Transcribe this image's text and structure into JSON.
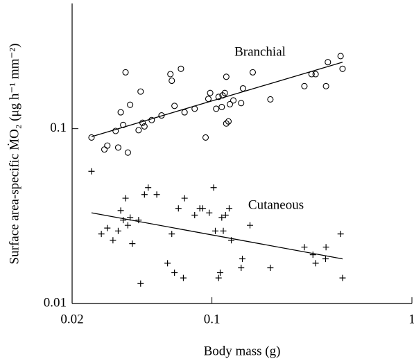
{
  "chart_data": {
    "type": "scatter",
    "xlabel": "Body mass  (g)",
    "ylabel": "Surface area-specific ṀO₂ (μg h⁻¹ mm⁻²)",
    "xscale": "log",
    "yscale": "log",
    "xlim": [
      0.02,
      1
    ],
    "ylim": [
      0.01,
      0.52
    ],
    "xticks": [
      0.02,
      0.1,
      1
    ],
    "yticks": [
      0.01,
      0.1
    ],
    "series": [
      {
        "name": "Branchial",
        "marker": "circle",
        "color": "#000000",
        "x": [
          0.025,
          0.029,
          0.03,
          0.033,
          0.034,
          0.035,
          0.036,
          0.037,
          0.038,
          0.039,
          0.043,
          0.044,
          0.045,
          0.046,
          0.05,
          0.056,
          0.062,
          0.063,
          0.065,
          0.07,
          0.073,
          0.082,
          0.093,
          0.096,
          0.098,
          0.105,
          0.108,
          0.112,
          0.113,
          0.116,
          0.118,
          0.118,
          0.121,
          0.123,
          0.128,
          0.14,
          0.143,
          0.16,
          0.196,
          0.29,
          0.315,
          0.33,
          0.372,
          0.38,
          0.44,
          0.45
        ],
        "values": [
          0.089,
          0.076,
          0.08,
          0.097,
          0.078,
          0.124,
          0.105,
          0.21,
          0.073,
          0.137,
          0.098,
          0.163,
          0.108,
          0.103,
          0.112,
          0.119,
          0.205,
          0.188,
          0.135,
          0.22,
          0.124,
          0.13,
          0.089,
          0.148,
          0.16,
          0.13,
          0.152,
          0.133,
          0.155,
          0.16,
          0.198,
          0.107,
          0.11,
          0.138,
          0.145,
          0.14,
          0.17,
          0.21,
          0.147,
          0.175,
          0.205,
          0.205,
          0.175,
          0.24,
          0.26,
          0.22
        ],
        "fit": {
          "x": [
            0.025,
            0.45
          ],
          "values": [
            0.09,
            0.24
          ]
        }
      },
      {
        "name": "Cutaneous",
        "marker": "plus",
        "color": "#000000",
        "x": [
          0.025,
          0.028,
          0.03,
          0.032,
          0.034,
          0.035,
          0.036,
          0.037,
          0.038,
          0.039,
          0.04,
          0.043,
          0.044,
          0.046,
          0.048,
          0.053,
          0.06,
          0.063,
          0.065,
          0.068,
          0.072,
          0.073,
          0.082,
          0.087,
          0.09,
          0.097,
          0.102,
          0.104,
          0.108,
          0.11,
          0.112,
          0.114,
          0.117,
          0.122,
          0.125,
          0.14,
          0.142,
          0.155,
          0.196,
          0.29,
          0.32,
          0.33,
          0.37,
          0.372,
          0.44,
          0.45
        ],
        "values": [
          0.057,
          0.025,
          0.027,
          0.023,
          0.026,
          0.034,
          0.03,
          0.04,
          0.028,
          0.031,
          0.022,
          0.03,
          0.013,
          0.042,
          0.046,
          0.042,
          0.017,
          0.025,
          0.015,
          0.035,
          0.014,
          0.04,
          0.032,
          0.035,
          0.035,
          0.033,
          0.046,
          0.026,
          0.014,
          0.015,
          0.031,
          0.026,
          0.032,
          0.035,
          0.023,
          0.016,
          0.018,
          0.028,
          0.016,
          0.021,
          0.019,
          0.017,
          0.018,
          0.021,
          0.025,
          0.014
        ],
        "fit": {
          "x": [
            0.025,
            0.45
          ],
          "values": [
            0.033,
            0.018
          ]
        }
      }
    ]
  }
}
